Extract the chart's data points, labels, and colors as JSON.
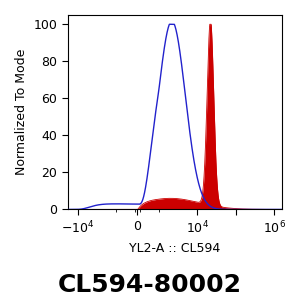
{
  "title": "CL594-80002",
  "xlabel": "YL2-A :: CL594",
  "ylabel": "Normalized To Mode",
  "ylim": [
    0,
    105
  ],
  "yticks": [
    0,
    20,
    40,
    60,
    80,
    100
  ],
  "bg_color": "#ffffff",
  "blue_color": "#2222cc",
  "red_color": "#cc0000",
  "red_fill_color": "#cc0000",
  "title_fontsize": 18,
  "axis_label_fontsize": 9,
  "tick_fontsize": 9,
  "linthresh": 1000,
  "linscale": 0.5,
  "xlim_min": -18000,
  "xlim_max": 1600000
}
